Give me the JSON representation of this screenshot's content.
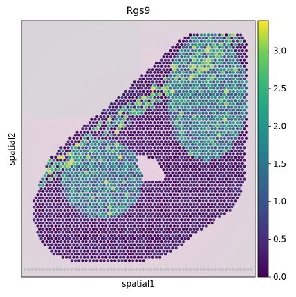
{
  "chart_data": {
    "type": "scatter",
    "title": "Rgs9",
    "xlabel": "spatial1",
    "ylabel": "spatial2",
    "colorbar": {
      "colormap": "viridis",
      "range": [
        0,
        3.4
      ],
      "ticks": [
        0.0,
        0.5,
        1.0,
        1.5,
        2.0,
        2.5,
        3.0
      ],
      "tick_labels": [
        "0.0",
        "0.5",
        "1.0",
        "1.5",
        "2.0",
        "2.5",
        "3.0"
      ]
    },
    "background": "H&E tissue image (pink, faded)",
    "value_summary": {
      "tissue_spots_typical": 0.3,
      "striatum_regions_typical": 1.4,
      "max_expression": 3.3
    },
    "x_axis_ticks": "none",
    "y_axis_ticks": "none",
    "grid": false
  }
}
